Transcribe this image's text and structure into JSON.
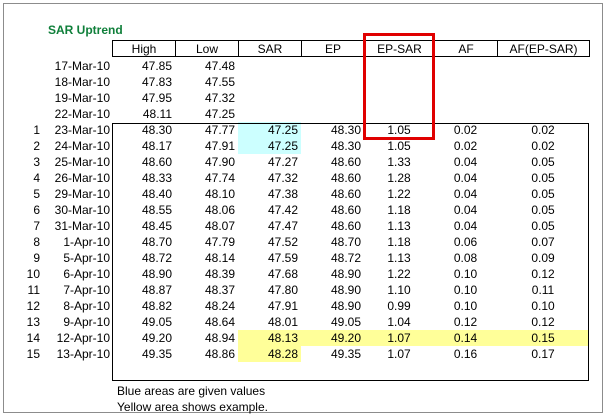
{
  "title": "SAR Uptrend",
  "headers": [
    "High",
    "Low",
    "SAR",
    "EP",
    "EP-SAR",
    "AF",
    "AF(EP-SAR)"
  ],
  "rows": [
    {
      "idx": "",
      "date": "17-Mar-10",
      "high": "47.85",
      "low": "47.48",
      "sar": "",
      "ep": "",
      "ep_sar": "",
      "af": "",
      "af_ep_sar": ""
    },
    {
      "idx": "",
      "date": "18-Mar-10",
      "high": "47.83",
      "low": "47.55",
      "sar": "",
      "ep": "",
      "ep_sar": "",
      "af": "",
      "af_ep_sar": ""
    },
    {
      "idx": "",
      "date": "19-Mar-10",
      "high": "47.95",
      "low": "47.32",
      "sar": "",
      "ep": "",
      "ep_sar": "",
      "af": "",
      "af_ep_sar": ""
    },
    {
      "idx": "",
      "date": "22-Mar-10",
      "high": "48.11",
      "low": "47.25",
      "sar": "",
      "ep": "",
      "ep_sar": "",
      "af": "",
      "af_ep_sar": ""
    },
    {
      "idx": "1",
      "date": "23-Mar-10",
      "high": "48.30",
      "low": "47.77",
      "sar": "47.25",
      "ep": "48.30",
      "ep_sar": "1.05",
      "af": "0.02",
      "af_ep_sar": "0.02"
    },
    {
      "idx": "2",
      "date": "24-Mar-10",
      "high": "48.17",
      "low": "47.91",
      "sar": "47.25",
      "ep": "48.30",
      "ep_sar": "1.05",
      "af": "0.02",
      "af_ep_sar": "0.02"
    },
    {
      "idx": "3",
      "date": "25-Mar-10",
      "high": "48.60",
      "low": "47.90",
      "sar": "47.27",
      "ep": "48.60",
      "ep_sar": "1.33",
      "af": "0.04",
      "af_ep_sar": "0.05"
    },
    {
      "idx": "4",
      "date": "26-Mar-10",
      "high": "48.33",
      "low": "47.74",
      "sar": "47.32",
      "ep": "48.60",
      "ep_sar": "1.28",
      "af": "0.04",
      "af_ep_sar": "0.05"
    },
    {
      "idx": "5",
      "date": "29-Mar-10",
      "high": "48.40",
      "low": "48.10",
      "sar": "47.38",
      "ep": "48.60",
      "ep_sar": "1.22",
      "af": "0.04",
      "af_ep_sar": "0.05"
    },
    {
      "idx": "6",
      "date": "30-Mar-10",
      "high": "48.55",
      "low": "48.06",
      "sar": "47.42",
      "ep": "48.60",
      "ep_sar": "1.18",
      "af": "0.04",
      "af_ep_sar": "0.05"
    },
    {
      "idx": "7",
      "date": "31-Mar-10",
      "high": "48.45",
      "low": "48.07",
      "sar": "47.47",
      "ep": "48.60",
      "ep_sar": "1.13",
      "af": "0.04",
      "af_ep_sar": "0.05"
    },
    {
      "idx": "8",
      "date": "1-Apr-10",
      "high": "48.70",
      "low": "47.79",
      "sar": "47.52",
      "ep": "48.70",
      "ep_sar": "1.18",
      "af": "0.06",
      "af_ep_sar": "0.07"
    },
    {
      "idx": "9",
      "date": "5-Apr-10",
      "high": "48.72",
      "low": "48.14",
      "sar": "47.59",
      "ep": "48.72",
      "ep_sar": "1.13",
      "af": "0.08",
      "af_ep_sar": "0.09"
    },
    {
      "idx": "10",
      "date": "6-Apr-10",
      "high": "48.90",
      "low": "48.39",
      "sar": "47.68",
      "ep": "48.90",
      "ep_sar": "1.22",
      "af": "0.10",
      "af_ep_sar": "0.12"
    },
    {
      "idx": "11",
      "date": "7-Apr-10",
      "high": "48.87",
      "low": "48.37",
      "sar": "47.80",
      "ep": "48.90",
      "ep_sar": "1.10",
      "af": "0.10",
      "af_ep_sar": "0.11"
    },
    {
      "idx": "12",
      "date": "8-Apr-10",
      "high": "48.82",
      "low": "48.24",
      "sar": "47.91",
      "ep": "48.90",
      "ep_sar": "0.99",
      "af": "0.10",
      "af_ep_sar": "0.10"
    },
    {
      "idx": "13",
      "date": "9-Apr-10",
      "high": "49.05",
      "low": "48.64",
      "sar": "48.01",
      "ep": "49.05",
      "ep_sar": "1.04",
      "af": "0.12",
      "af_ep_sar": "0.12"
    },
    {
      "idx": "14",
      "date": "12-Apr-10",
      "high": "49.20",
      "low": "48.94",
      "sar": "48.13",
      "ep": "49.20",
      "ep_sar": "1.07",
      "af": "0.14",
      "af_ep_sar": "0.15"
    },
    {
      "idx": "15",
      "date": "13-Apr-10",
      "high": "49.35",
      "low": "48.86",
      "sar": "48.28",
      "ep": "49.35",
      "ep_sar": "1.07",
      "af": "0.16",
      "af_ep_sar": "0.17"
    }
  ],
  "notes": [
    "Blue areas are given values",
    "Yellow area shows example."
  ],
  "colors": {
    "title_green": "#0f7f3a",
    "given_blue": "#ccffff",
    "example_yellow": "#ffff99",
    "highlight_red": "#e00000"
  },
  "highlights": {
    "blue_cells": [
      [
        4,
        "sar"
      ],
      [
        5,
        "sar"
      ]
    ],
    "yellow_cells": [
      [
        17,
        "sar"
      ],
      [
        17,
        "ep"
      ],
      [
        17,
        "ep_sar"
      ],
      [
        17,
        "af"
      ],
      [
        17,
        "af_ep_sar"
      ],
      [
        18,
        "sar"
      ]
    ]
  }
}
